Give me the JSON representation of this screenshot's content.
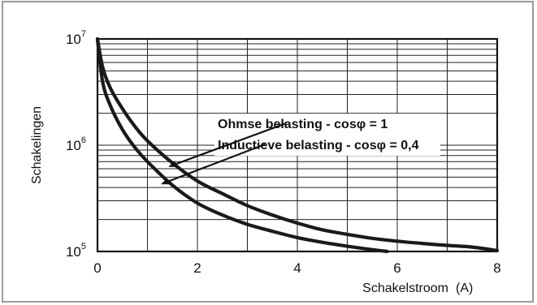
{
  "chart_data": {
    "type": "line",
    "title": "",
    "xlabel": "Schakelstroom",
    "xlabel_unit": "(A)",
    "ylabel": "Schakelingen",
    "y_scale": "log",
    "xlim": [
      0,
      8
    ],
    "ylim": [
      100000,
      10000000
    ],
    "x_ticks": [
      "0",
      "2",
      "4",
      "6",
      "8"
    ],
    "y_ticks": [
      {
        "base": "10",
        "exp": "5",
        "value": 100000
      },
      {
        "base": "10",
        "exp": "6",
        "value": 1000000
      },
      {
        "base": "10",
        "exp": "7",
        "value": 10000000
      }
    ],
    "grid": true,
    "legend": "none",
    "line_color": "#1a1a1a",
    "series": [
      {
        "name": "Ohmse belasting - cosφ = 1",
        "x": [
          0,
          0.1,
          0.25,
          0.5,
          0.75,
          1.0,
          1.5,
          2.0,
          2.5,
          3.0,
          3.5,
          4.0,
          4.5,
          5.0,
          5.5,
          6.0,
          6.5,
          7.0,
          7.5,
          8.0
        ],
        "y": [
          10000000,
          5500000,
          3500000,
          2200000,
          1500000,
          1100000,
          680000,
          460000,
          350000,
          270000,
          220000,
          185000,
          160000,
          145000,
          133000,
          125000,
          119000,
          114000,
          110000,
          102000
        ]
      },
      {
        "name": "Inductieve belasting - cosφ = 0,4",
        "x": [
          0,
          0.1,
          0.25,
          0.5,
          0.75,
          1.0,
          1.5,
          2.0,
          2.5,
          3.0,
          3.5,
          4.0,
          4.5,
          5.0,
          5.5,
          5.8
        ],
        "y": [
          10000000,
          4000000,
          2400000,
          1400000,
          950000,
          700000,
          420000,
          285000,
          220000,
          180000,
          155000,
          135000,
          122000,
          112000,
          104000,
          100000
        ]
      }
    ],
    "annotations": [
      {
        "text": "Ohmse belasting - cosφ = 1",
        "target_series": 0
      },
      {
        "text": "Inductieve belasting - cosφ = 0,4",
        "target_series": 1
      }
    ]
  }
}
